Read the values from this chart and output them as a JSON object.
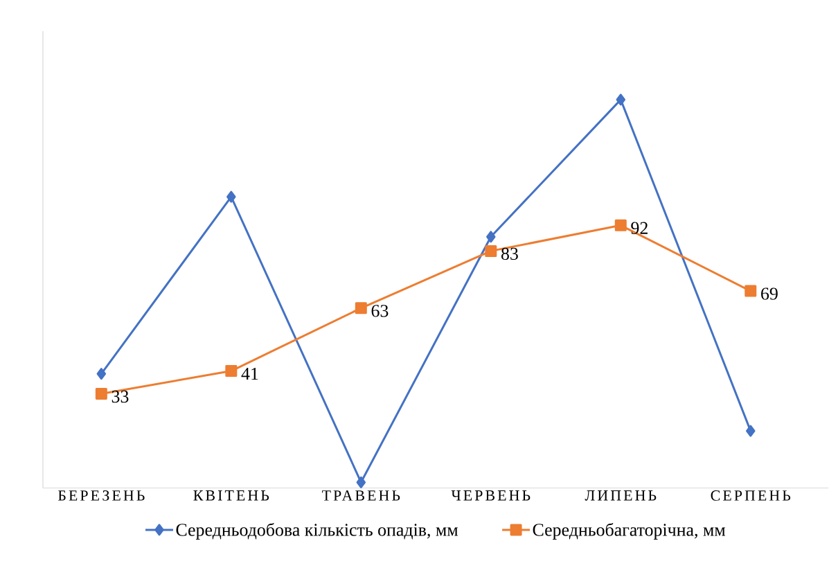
{
  "chart_data": {
    "type": "line",
    "categories": [
      "БЕРЕЗЕНЬ",
      "КВІТЕНЬ",
      "ТРАВЕНЬ",
      "ЧЕРВЕНЬ",
      "ЛИПЕНЬ",
      "СЕРПЕНЬ"
    ],
    "ylim": [
      0,
      160
    ],
    "legend": "bottom",
    "series": [
      {
        "name": "Середньодобова кількість опадів, мм",
        "color": "#4472c4",
        "marker": "diamond",
        "values": [
          40,
          102,
          2,
          88,
          136,
          20
        ]
      },
      {
        "name": "Середньобагаторічна, мм",
        "color": "#ed7d31",
        "marker": "square",
        "values": [
          33,
          41,
          63,
          83,
          92,
          69
        ],
        "value_labels": [
          "33",
          "41",
          "63",
          "83",
          "92",
          "69"
        ]
      }
    ]
  }
}
